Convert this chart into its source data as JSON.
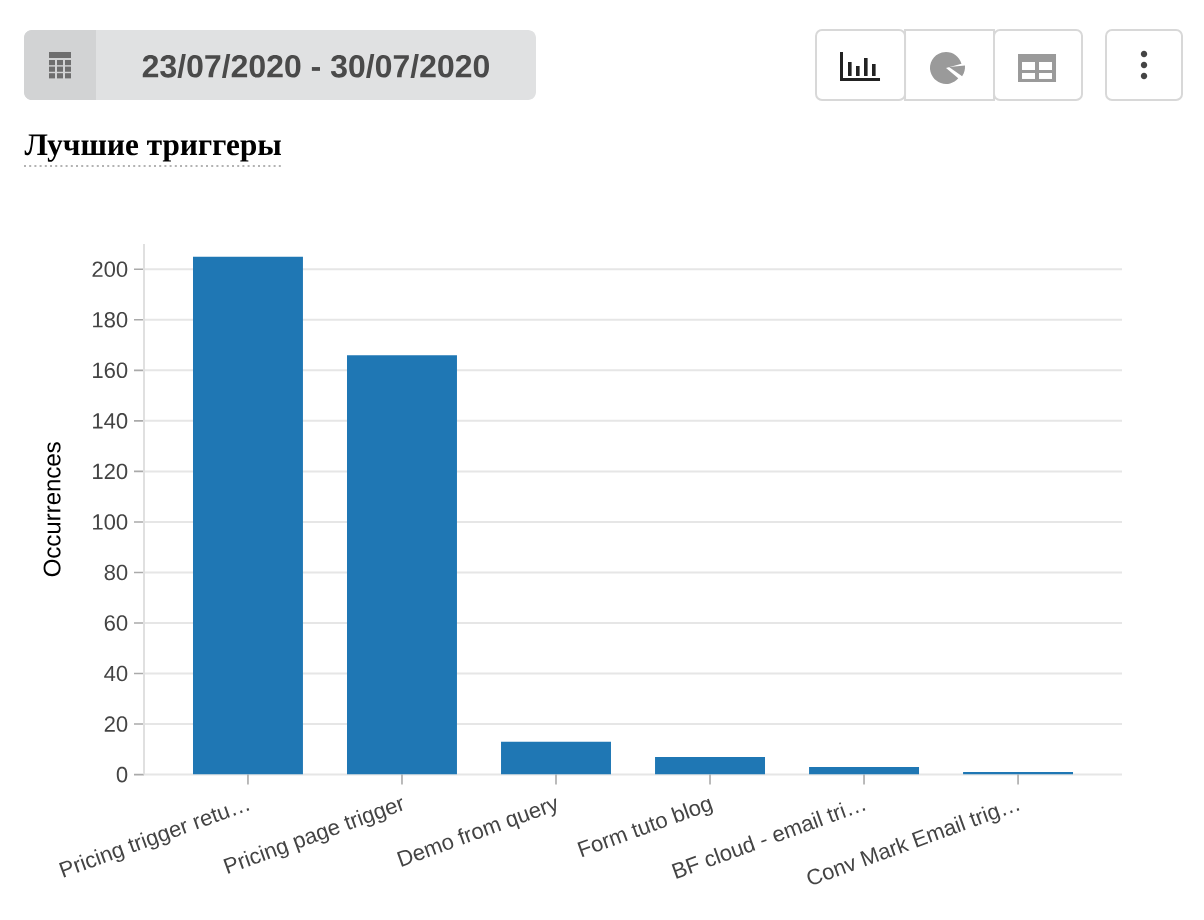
{
  "chart_data": {
    "type": "bar",
    "title": "Лучшие триггеры",
    "subtitle": "23/07/2020 - 30/07/2020",
    "ylabel": "Occurrences",
    "categories": [
      "Pricing trigger retu…",
      "Pricing page trigger",
      "Demo from query",
      "Form tuto blog",
      "BF cloud - email tri…",
      "Conv Mark Email trig…"
    ],
    "values": [
      205,
      166,
      13,
      7,
      3,
      1
    ],
    "color": "#1f77b4",
    "ylim": [
      0,
      210
    ],
    "yticks": [
      0,
      20,
      40,
      60,
      80,
      100,
      120,
      140,
      160,
      180,
      200
    ],
    "grid": "y"
  }
}
